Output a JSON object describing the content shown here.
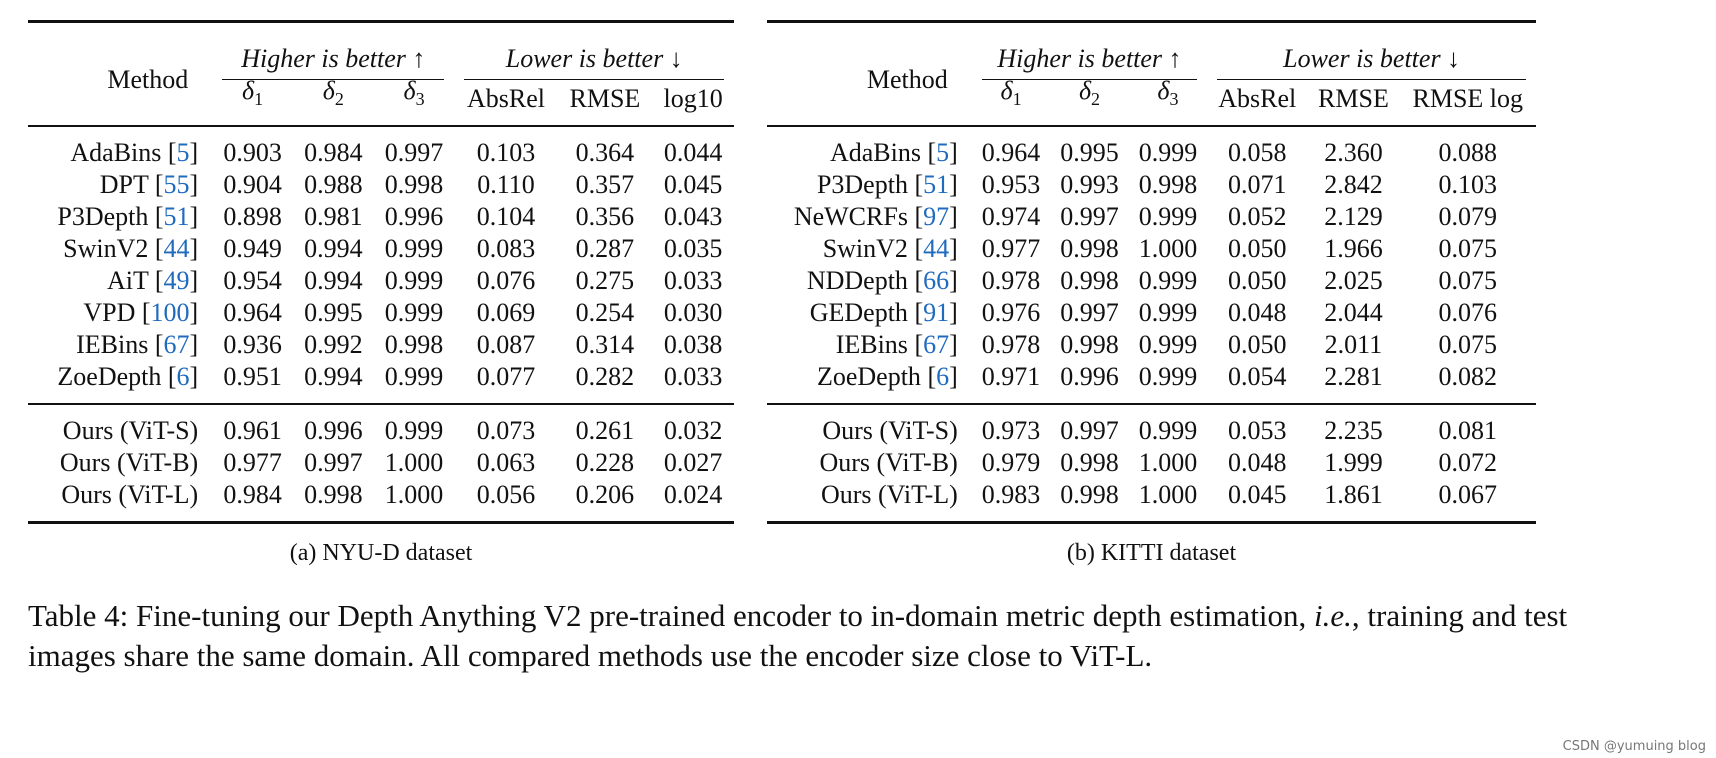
{
  "table_a": {
    "subcaption": "(a) NYU-D dataset",
    "header": {
      "method": "Method",
      "higher": "Higher is better ↑",
      "lower": "Lower is better ↓",
      "d1": "δ",
      "d1_sub": "1",
      "d2": "δ",
      "d2_sub": "2",
      "d3": "δ",
      "d3_sub": "3",
      "m1": "AbsRel",
      "m2": "RMSE",
      "m3": "log10"
    },
    "rows": [
      {
        "name": "AdaBins",
        "ref": "5",
        "v": [
          "0.903",
          "0.984",
          "0.997",
          "0.103",
          "0.364",
          "0.044"
        ]
      },
      {
        "name": "DPT",
        "ref": "55",
        "v": [
          "0.904",
          "0.988",
          "0.998",
          "0.110",
          "0.357",
          "0.045"
        ]
      },
      {
        "name": "P3Depth",
        "ref": "51",
        "v": [
          "0.898",
          "0.981",
          "0.996",
          "0.104",
          "0.356",
          "0.043"
        ]
      },
      {
        "name": "SwinV2",
        "ref": "44",
        "v": [
          "0.949",
          "0.994",
          "0.999",
          "0.083",
          "0.287",
          "0.035"
        ]
      },
      {
        "name": "AiT",
        "ref": "49",
        "v": [
          "0.954",
          "0.994",
          "0.999",
          "0.076",
          "0.275",
          "0.033"
        ]
      },
      {
        "name": "VPD",
        "ref": "100",
        "v": [
          "0.964",
          "0.995",
          "0.999",
          "0.069",
          "0.254",
          "0.030"
        ]
      },
      {
        "name": "IEBins",
        "ref": "67",
        "v": [
          "0.936",
          "0.992",
          "0.998",
          "0.087",
          "0.314",
          "0.038"
        ]
      },
      {
        "name": "ZoeDepth",
        "ref": "6",
        "v": [
          "0.951",
          "0.994",
          "0.999",
          "0.077",
          "0.282",
          "0.033"
        ]
      }
    ],
    "ours": [
      {
        "name": "Ours (ViT-S)",
        "v": [
          "0.961",
          "0.996",
          "0.999",
          "0.073",
          "0.261",
          "0.032"
        ]
      },
      {
        "name": "Ours (ViT-B)",
        "v": [
          "0.977",
          "0.997",
          "1.000",
          "0.063",
          "0.228",
          "0.027"
        ]
      },
      {
        "name": "Ours (ViT-L)",
        "v": [
          "0.984",
          "0.998",
          "1.000",
          "0.056",
          "0.206",
          "0.024"
        ]
      }
    ]
  },
  "table_b": {
    "subcaption": "(b) KITTI dataset",
    "header": {
      "method": "Method",
      "higher": "Higher is better ↑",
      "lower": "Lower is better ↓",
      "d1": "δ",
      "d1_sub": "1",
      "d2": "δ",
      "d2_sub": "2",
      "d3": "δ",
      "d3_sub": "3",
      "m1": "AbsRel",
      "m2": "RMSE",
      "m3": "RMSE log"
    },
    "rows": [
      {
        "name": "AdaBins",
        "ref": "5",
        "v": [
          "0.964",
          "0.995",
          "0.999",
          "0.058",
          "2.360",
          "0.088"
        ]
      },
      {
        "name": "P3Depth",
        "ref": "51",
        "v": [
          "0.953",
          "0.993",
          "0.998",
          "0.071",
          "2.842",
          "0.103"
        ]
      },
      {
        "name": "NeWCRFs",
        "ref": "97",
        "v": [
          "0.974",
          "0.997",
          "0.999",
          "0.052",
          "2.129",
          "0.079"
        ]
      },
      {
        "name": "SwinV2",
        "ref": "44",
        "v": [
          "0.977",
          "0.998",
          "1.000",
          "0.050",
          "1.966",
          "0.075"
        ]
      },
      {
        "name": "NDDepth",
        "ref": "66",
        "v": [
          "0.978",
          "0.998",
          "0.999",
          "0.050",
          "2.025",
          "0.075"
        ]
      },
      {
        "name": "GEDepth",
        "ref": "91",
        "v": [
          "0.976",
          "0.997",
          "0.999",
          "0.048",
          "2.044",
          "0.076"
        ]
      },
      {
        "name": "IEBins",
        "ref": "67",
        "v": [
          "0.978",
          "0.998",
          "0.999",
          "0.050",
          "2.011",
          "0.075"
        ]
      },
      {
        "name": "ZoeDepth",
        "ref": "6",
        "v": [
          "0.971",
          "0.996",
          "0.999",
          "0.054",
          "2.281",
          "0.082"
        ]
      }
    ],
    "ours": [
      {
        "name": "Ours (ViT-S)",
        "v": [
          "0.973",
          "0.997",
          "0.999",
          "0.053",
          "2.235",
          "0.081"
        ]
      },
      {
        "name": "Ours (ViT-B)",
        "v": [
          "0.979",
          "0.998",
          "1.000",
          "0.048",
          "1.999",
          "0.072"
        ]
      },
      {
        "name": "Ours (ViT-L)",
        "v": [
          "0.983",
          "0.998",
          "1.000",
          "0.045",
          "1.861",
          "0.067"
        ]
      }
    ]
  },
  "caption": {
    "part1": "Table 4: Fine-tuning our Depth Anything V2 pre-trained encoder to in-domain metric depth estimation, ",
    "ie": "i.e.",
    "part2": ", training and test images share the same domain. All compared methods use the encoder size close to ViT-L."
  },
  "watermark": "CSDN @yumuing blog"
}
